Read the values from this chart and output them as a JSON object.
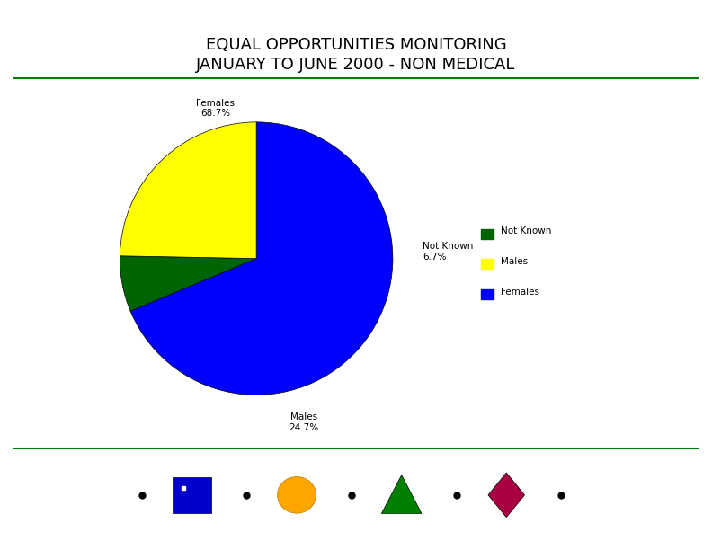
{
  "title_line1": "EQUAL OPPORTUNITIES MONITORING",
  "title_line2": "JANUARY TO JUNE 2000 - NON MEDICAL",
  "title_fontsize": 13,
  "title_color": "#000000",
  "background_color": "#ffffff",
  "pie_values": [
    68.7,
    24.7,
    6.6
  ],
  "pie_colors": [
    "#0000ff",
    "#ffff00",
    "#006400"
  ],
  "legend_labels": [
    "Not Known",
    "Males",
    "Females"
  ],
  "legend_colors": [
    "#006400",
    "#ffff00",
    "#0000ff"
  ],
  "line_color": "#008000",
  "shape_bullet_color": "#000000",
  "shape_square_color": "#0000cc",
  "shape_circle_color": "#ffa500",
  "shape_triangle_color": "#008000",
  "shape_diamond_color": "#aa0044"
}
